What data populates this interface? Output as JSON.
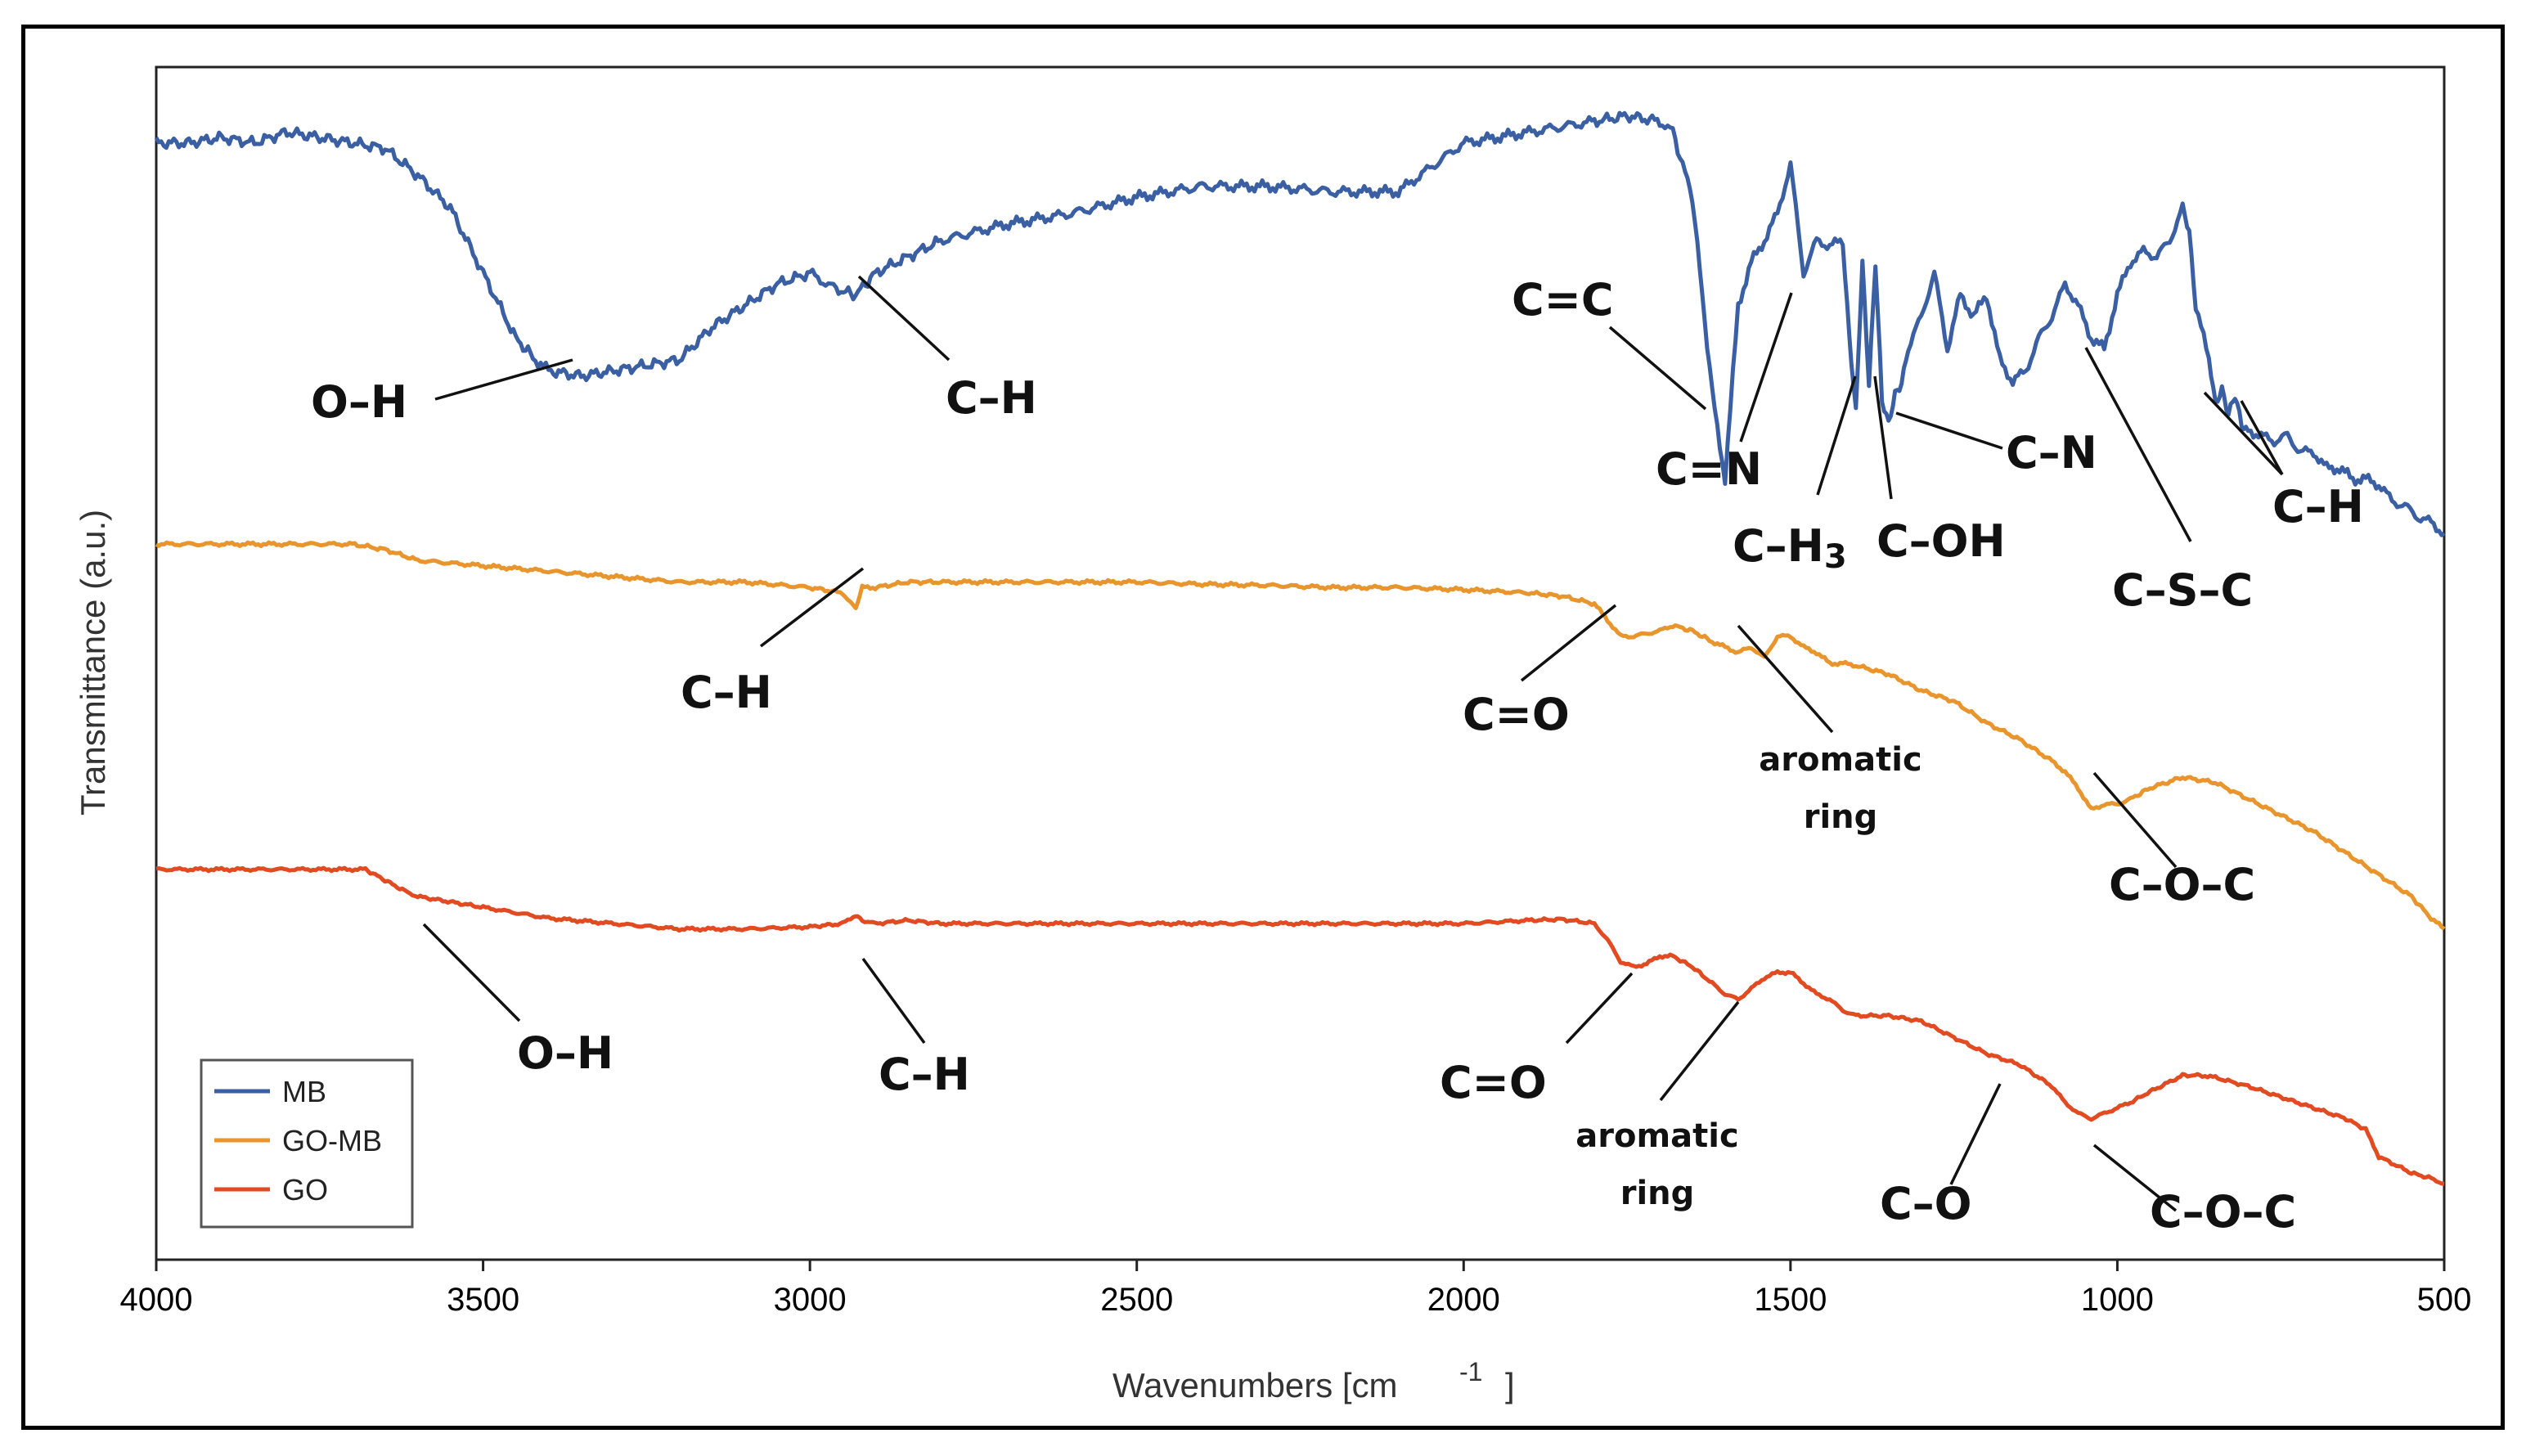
{
  "chart_data": {
    "type": "line",
    "title": "",
    "xlabel": "Wavenumbers [cm",
    "xlabel_sup": "-1",
    "xlabel_close": "]",
    "ylabel": "Transmittance (a.u.)",
    "xlim": [
      4000,
      500
    ],
    "x_ticks": [
      "4000",
      "3500",
      "3000",
      "2500",
      "2000",
      "1500",
      "1000",
      "500"
    ],
    "grid": false,
    "legend_position": "bottom-left",
    "series": [
      {
        "name": "MB",
        "color": "#3a5fa3",
        "x": [
          4000,
          3950,
          3900,
          3850,
          3800,
          3750,
          3700,
          3650,
          3600,
          3550,
          3500,
          3450,
          3420,
          3400,
          3350,
          3300,
          3250,
          3200,
          3150,
          3100,
          3050,
          3000,
          2960,
          2930,
          2900,
          2850,
          2800,
          2700,
          2600,
          2500,
          2400,
          2300,
          2200,
          2100,
          2000,
          1900,
          1800,
          1750,
          1700,
          1680,
          1650,
          1620,
          1600,
          1580,
          1560,
          1540,
          1520,
          1500,
          1480,
          1460,
          1440,
          1420,
          1410,
          1400,
          1390,
          1380,
          1370,
          1360,
          1350,
          1340,
          1330,
          1320,
          1300,
          1280,
          1260,
          1240,
          1220,
          1200,
          1180,
          1160,
          1140,
          1120,
          1100,
          1080,
          1060,
          1040,
          1020,
          1000,
          980,
          960,
          940,
          920,
          900,
          890,
          880,
          860,
          850,
          840,
          830,
          820,
          810,
          800,
          780,
          760,
          740,
          720,
          700,
          680,
          660,
          640,
          620,
          600,
          580,
          560,
          540,
          520,
          500
        ],
        "y": [
          93,
          93,
          93.5,
          93,
          94,
          93.5,
          93,
          92.5,
          90,
          87,
          81,
          75,
          73,
          72,
          71.5,
          72,
          72.5,
          73,
          76,
          78,
          80,
          81,
          79.5,
          79,
          81,
          82.5,
          84,
          85.5,
          86.5,
          88,
          89,
          89,
          88.5,
          88.5,
          93,
          94,
          95,
          95.5,
          95,
          94,
          88,
          70,
          62,
          78,
          82,
          84,
          86.5,
          91,
          81,
          84,
          83.5,
          84,
          75,
          68,
          82,
          71,
          82,
          69,
          67,
          70,
          71,
          74,
          77,
          81,
          74,
          79,
          77,
          79,
          73,
          71,
          72,
          75,
          77,
          80,
          78,
          75,
          74,
          79,
          82,
          83,
          82.5,
          84,
          87,
          85,
          78,
          73,
          69,
          70.5,
          68,
          69.5,
          67,
          66.5,
          66,
          65.5,
          66,
          64.5,
          64.5,
          63,
          63,
          62,
          62,
          61.5,
          60,
          59.5,
          58.5,
          58,
          57
        ]
      },
      {
        "name": "GO-MB",
        "color": "#e8952e",
        "x": [
          4000,
          3900,
          3800,
          3700,
          3650,
          3600,
          3500,
          3400,
          3300,
          3200,
          3100,
          3000,
          2950,
          2930,
          2920,
          2900,
          2850,
          2800,
          2700,
          2600,
          2500,
          2400,
          2300,
          2200,
          2100,
          2000,
          1900,
          1850,
          1800,
          1780,
          1760,
          1740,
          1700,
          1680,
          1650,
          1620,
          1600,
          1580,
          1560,
          1540,
          1520,
          1500,
          1480,
          1460,
          1440,
          1420,
          1400,
          1350,
          1300,
          1250,
          1200,
          1150,
          1100,
          1080,
          1060,
          1040,
          1020,
          1000,
          980,
          950,
          900,
          850,
          800,
          750,
          700,
          650,
          600,
          550,
          520,
          500
        ],
        "y": [
          56,
          56,
          56,
          56,
          55.5,
          54.5,
          54,
          53.5,
          53,
          52.5,
          52.5,
          52,
          51.5,
          50,
          52,
          52,
          52.5,
          52.5,
          52.5,
          52.5,
          52.5,
          52.3,
          52.2,
          52,
          52,
          51.8,
          51.5,
          51.2,
          50.5,
          49,
          47.5,
          47.5,
          48,
          48.5,
          48,
          47,
          46.5,
          46,
          46.5,
          45.5,
          47.5,
          47.5,
          46.5,
          46,
          45,
          45,
          44.8,
          44,
          42.5,
          41.5,
          39.5,
          38,
          36,
          35,
          33.5,
          31.5,
          32,
          32,
          32.5,
          33.5,
          34.5,
          34,
          32.5,
          31,
          29.5,
          27.5,
          25.5,
          23.5,
          21.5,
          20.5
        ]
      },
      {
        "name": "GO",
        "color": "#e24a21",
        "x": [
          4000,
          3900,
          3800,
          3700,
          3680,
          3650,
          3620,
          3600,
          3550,
          3500,
          3400,
          3300,
          3200,
          3100,
          3000,
          2950,
          2930,
          2920,
          2900,
          2850,
          2800,
          2700,
          2600,
          2500,
          2400,
          2300,
          2200,
          2100,
          2000,
          1900,
          1850,
          1800,
          1780,
          1760,
          1740,
          1720,
          1700,
          1680,
          1650,
          1620,
          1600,
          1580,
          1560,
          1540,
          1520,
          1500,
          1480,
          1460,
          1440,
          1420,
          1400,
          1350,
          1300,
          1250,
          1200,
          1150,
          1100,
          1080,
          1060,
          1040,
          1020,
          1000,
          980,
          950,
          900,
          870,
          850,
          800,
          750,
          700,
          650,
          620,
          600,
          550,
          520,
          500
        ],
        "y": [
          26,
          26,
          26,
          26,
          26,
          25,
          24,
          23.5,
          23,
          22.5,
          21.5,
          21,
          20.5,
          20.5,
          20.7,
          21,
          21.8,
          21.3,
          21,
          21.3,
          21,
          21,
          21,
          21,
          21,
          21,
          21,
          21,
          21,
          21.3,
          21.4,
          21,
          19.5,
          17.5,
          17,
          17.3,
          18,
          18,
          17,
          15.5,
          14.5,
          14,
          15,
          16,
          16.5,
          16.5,
          15.5,
          14.5,
          14,
          13,
          12.5,
          12.5,
          12,
          10.5,
          9,
          8,
          6,
          4.5,
          3.5,
          3,
          3.5,
          4,
          4.5,
          5.5,
          7,
          7,
          6.8,
          6,
          5,
          4,
          3,
          2,
          -0.5,
          -2,
          -2.5,
          -3
        ]
      }
    ],
    "annotations": [
      {
        "text": "O–H"
      },
      {
        "text": "C–H"
      },
      {
        "text": "C=C"
      },
      {
        "text": "C=N"
      },
      {
        "text": "C–H"
      },
      {
        "text": "C–N"
      },
      {
        "text": "C–H"
      },
      {
        "text": "C–OH"
      },
      {
        "text": "C–S–C"
      },
      {
        "text": "C–H"
      },
      {
        "text": "C=O"
      },
      {
        "text": "aromatic"
      },
      {
        "text": "ring"
      },
      {
        "text": "C–O–C"
      },
      {
        "text": "O–H"
      },
      {
        "text": "C–H"
      },
      {
        "text": "C=O"
      },
      {
        "text": "aromatic"
      },
      {
        "text": "ring"
      },
      {
        "text": "C–O"
      },
      {
        "text": "C–O–C"
      }
    ],
    "ch3_prefix": "C–H",
    "ch3_sub": "3"
  }
}
